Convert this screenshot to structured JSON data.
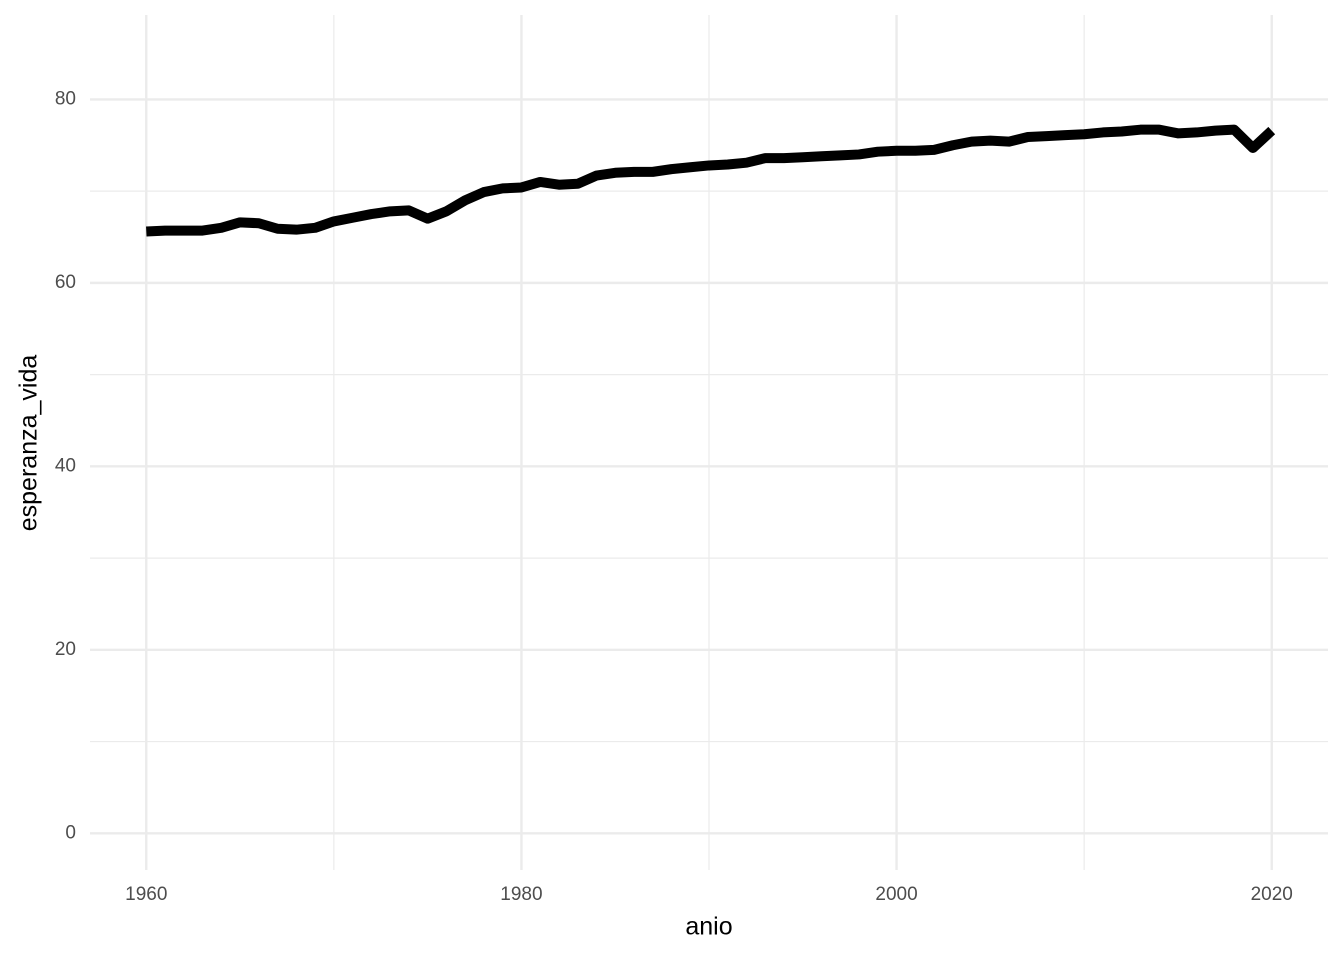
{
  "chart_data": {
    "type": "line",
    "x_label": "anio",
    "y_label": "esperanza_vida",
    "x": [
      1960,
      1961,
      1962,
      1963,
      1964,
      1965,
      1966,
      1967,
      1968,
      1969,
      1970,
      1971,
      1972,
      1973,
      1974,
      1975,
      1976,
      1977,
      1978,
      1979,
      1980,
      1981,
      1982,
      1983,
      1984,
      1985,
      1986,
      1987,
      1988,
      1989,
      1990,
      1991,
      1992,
      1993,
      1994,
      1995,
      1996,
      1997,
      1998,
      1999,
      2000,
      2001,
      2002,
      2003,
      2004,
      2005,
      2006,
      2007,
      2008,
      2009,
      2010,
      2011,
      2012,
      2013,
      2014,
      2015,
      2016,
      2017,
      2018,
      2019,
      2020
    ],
    "series": [
      {
        "color": "#000000",
        "values": [
          65.6,
          65.7,
          65.7,
          65.7,
          66.0,
          66.6,
          66.5,
          65.9,
          65.8,
          66.0,
          66.7,
          67.1,
          67.5,
          67.8,
          67.9,
          67.0,
          67.8,
          69.0,
          69.9,
          70.3,
          70.4,
          71.0,
          70.7,
          70.8,
          71.7,
          72.0,
          72.1,
          72.1,
          72.4,
          72.6,
          72.8,
          72.9,
          73.1,
          73.6,
          73.6,
          73.7,
          73.8,
          73.9,
          74.0,
          74.3,
          74.4,
          74.4,
          74.5,
          75.0,
          75.4,
          75.5,
          75.4,
          75.9,
          76.0,
          76.1,
          76.2,
          76.4,
          76.5,
          76.7,
          76.7,
          76.3,
          76.4,
          76.6,
          76.7,
          74.7,
          76.6
        ]
      }
    ],
    "xlim": [
      1957,
      2023
    ],
    "ylim": [
      -4,
      89.2
    ],
    "xticks": [
      1960,
      1980,
      2000,
      2020
    ],
    "yticks": [
      0,
      20,
      40,
      60,
      80
    ],
    "xminor": [
      1970,
      1990,
      2010
    ],
    "yminor": [
      10,
      30,
      50,
      70
    ],
    "grid": true
  }
}
